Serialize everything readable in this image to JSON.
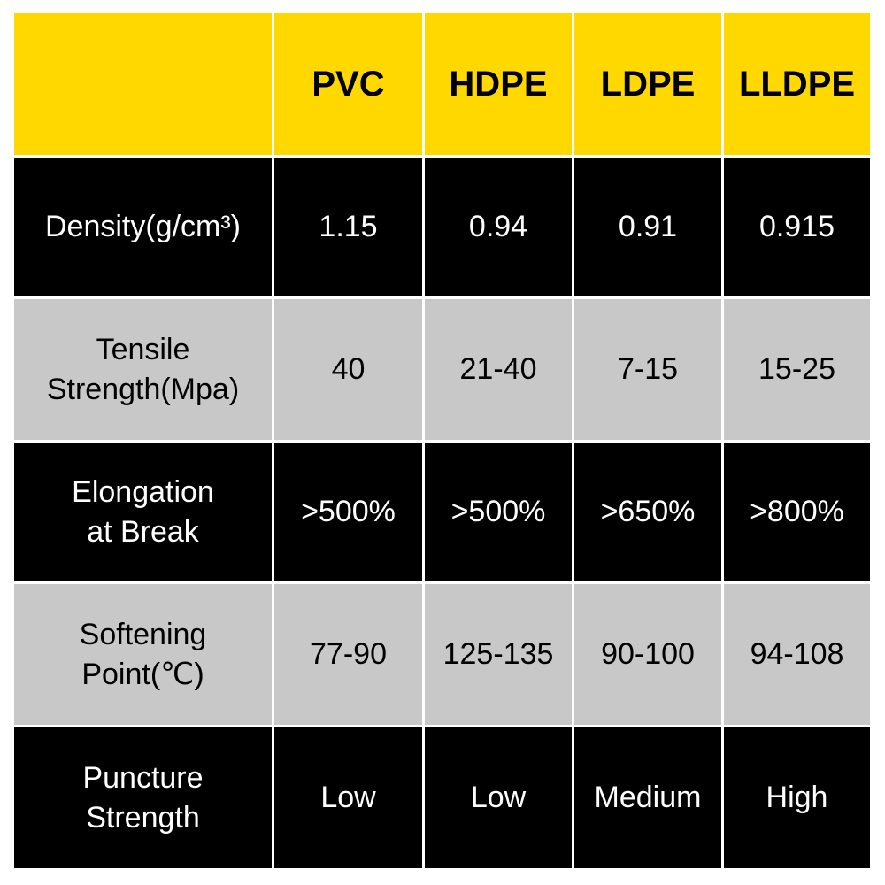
{
  "colors": {
    "header": "#FFD800",
    "dark_row": "#000000",
    "light_row": "#C8C8C8"
  },
  "columns": [
    "",
    "PVC",
    "HDPE",
    "LDPE",
    "LLDPE"
  ],
  "rows": [
    {
      "label": "Density(g/cm³)",
      "values": [
        "1.15",
        "0.94",
        "0.91",
        "0.915"
      ]
    },
    {
      "label": "Tensile\nStrength(Mpa)",
      "values": [
        "40",
        "21-40",
        "7-15",
        "15-25"
      ]
    },
    {
      "label": "Elongation\nat Break",
      "values": [
        ">500%",
        ">500%",
        ">650%",
        ">800%"
      ]
    },
    {
      "label": "Softening\nPoint(℃)",
      "values": [
        "77-90",
        "125-135",
        "90-100",
        "94-108"
      ]
    },
    {
      "label": "Puncture\nStrength",
      "values": [
        "Low",
        "Low",
        "Medium",
        "High"
      ]
    }
  ]
}
